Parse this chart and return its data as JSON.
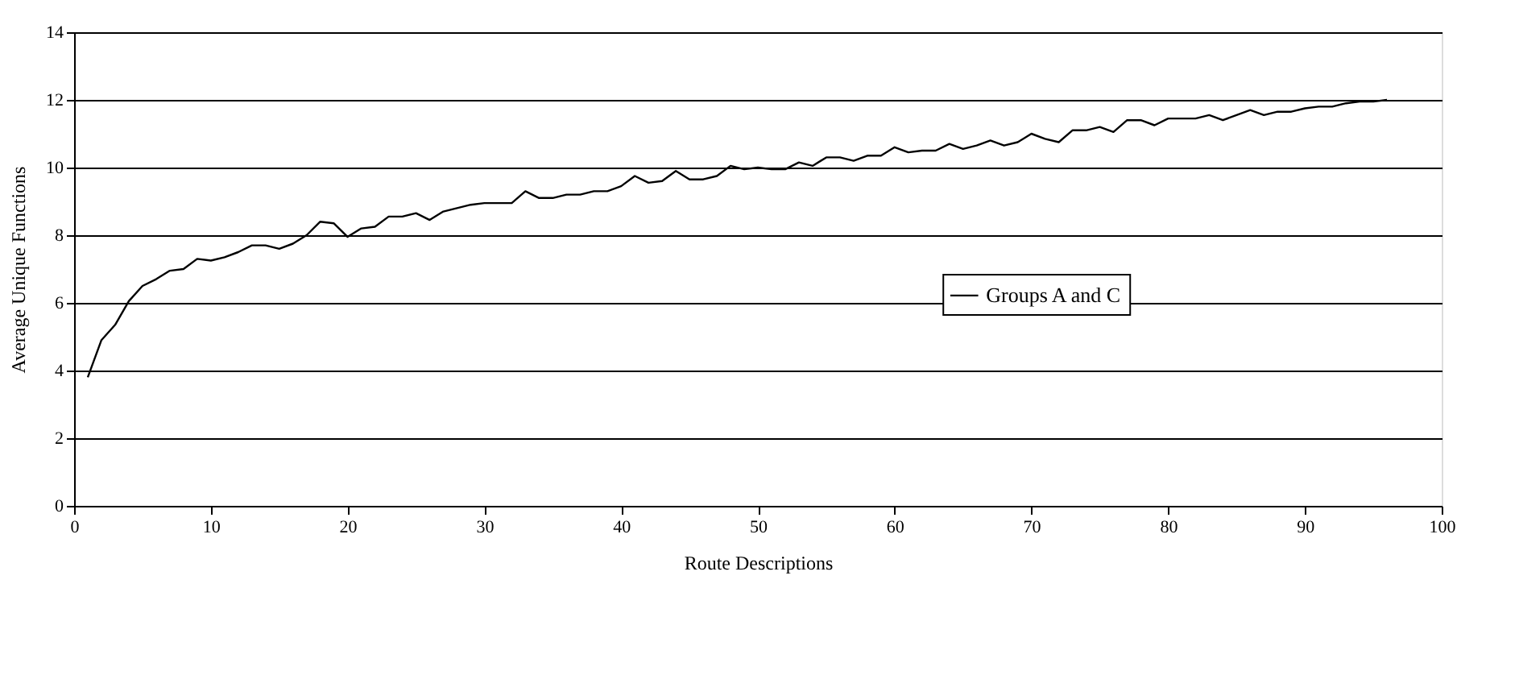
{
  "chart_data": {
    "type": "line",
    "xlabel": "Route Descriptions",
    "ylabel": "Average Unique Functions",
    "x": [
      1,
      2,
      3,
      4,
      5,
      6,
      7,
      8,
      9,
      10,
      11,
      12,
      13,
      14,
      15,
      16,
      17,
      18,
      19,
      20,
      21,
      22,
      23,
      24,
      25,
      26,
      27,
      28,
      29,
      30,
      31,
      32,
      33,
      34,
      35,
      36,
      37,
      38,
      39,
      40,
      41,
      42,
      43,
      44,
      45,
      46,
      47,
      48,
      49,
      50,
      51,
      52,
      53,
      54,
      55,
      56,
      57,
      58,
      59,
      60,
      61,
      62,
      63,
      64,
      65,
      66,
      67,
      68,
      69,
      70,
      71,
      72,
      73,
      74,
      75,
      76,
      77,
      78,
      79,
      80,
      81,
      82,
      83,
      84,
      85,
      86,
      87,
      88,
      89,
      90,
      91,
      92,
      93,
      94,
      95,
      96
    ],
    "series": [
      {
        "name": "Groups A and C",
        "color": "#000000",
        "values": [
          3.8,
          4.9,
          5.35,
          6.05,
          6.5,
          6.7,
          6.95,
          7.0,
          7.3,
          7.25,
          7.35,
          7.5,
          7.7,
          7.7,
          7.6,
          7.75,
          8.0,
          8.4,
          8.35,
          7.95,
          8.2,
          8.25,
          8.55,
          8.55,
          8.65,
          8.45,
          8.7,
          8.8,
          8.9,
          8.95,
          8.95,
          8.95,
          9.3,
          9.1,
          9.1,
          9.2,
          9.2,
          9.3,
          9.3,
          9.45,
          9.75,
          9.55,
          9.6,
          9.9,
          9.65,
          9.65,
          9.75,
          10.05,
          9.95,
          10.0,
          9.95,
          9.95,
          10.15,
          10.05,
          10.3,
          10.3,
          10.2,
          10.35,
          10.35,
          10.6,
          10.45,
          10.5,
          10.5,
          10.7,
          10.55,
          10.65,
          10.8,
          10.65,
          10.75,
          11.0,
          10.85,
          10.75,
          11.1,
          11.1,
          11.2,
          11.05,
          11.4,
          11.4,
          11.25,
          11.45,
          11.45,
          11.45,
          11.55,
          11.4,
          11.55,
          11.7,
          11.55,
          11.65,
          11.65,
          11.75,
          11.8,
          11.8,
          11.9,
          11.95,
          11.95,
          12.0
        ]
      }
    ],
    "xlim": [
      0,
      100
    ],
    "xticks": [
      0,
      10,
      20,
      30,
      40,
      50,
      60,
      70,
      80,
      90,
      100
    ],
    "ylim": [
      0,
      14
    ],
    "yticks": [
      0,
      2,
      4,
      6,
      8,
      10,
      12,
      14
    ],
    "grid": "y",
    "legend": "right",
    "marker": "none",
    "line_style": "solid"
  }
}
